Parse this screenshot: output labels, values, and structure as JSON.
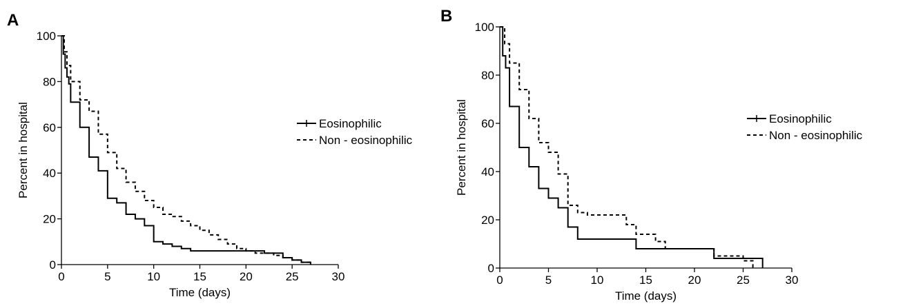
{
  "chart_data": [
    {
      "type": "line",
      "panel_label": "A",
      "xlabel": "Time (days)",
      "ylabel": "Percent in hospital",
      "xlim": [
        0,
        30
      ],
      "ylim": [
        0,
        100
      ],
      "xticks": [
        0,
        5,
        10,
        15,
        20,
        25,
        30
      ],
      "yticks": [
        0,
        20,
        40,
        60,
        80,
        100
      ],
      "xtick_labels": [
        "0",
        "5",
        "10",
        "15",
        "20",
        "25",
        "30"
      ],
      "ytick_labels": [
        "0",
        "20",
        "40",
        "60",
        "80",
        "100"
      ],
      "legend_position": "right",
      "step": true,
      "series": [
        {
          "name": "Eosinophilic",
          "style": "solid",
          "x": [
            0,
            0.2,
            0.4,
            0.6,
            0.8,
            1,
            2,
            3,
            4,
            5,
            6,
            7,
            8,
            9,
            10,
            11,
            12,
            13,
            14,
            22,
            24,
            25,
            26,
            27
          ],
          "y": [
            100,
            92,
            86,
            82,
            79,
            71,
            60,
            47,
            41,
            29,
            27,
            22,
            20,
            17,
            10,
            9,
            8,
            7,
            6,
            5,
            3,
            2,
            1,
            0
          ]
        },
        {
          "name": "Non - eosinophilic",
          "style": "dashed",
          "x": [
            0,
            0.3,
            0.6,
            1,
            2,
            3,
            4,
            5,
            6,
            7,
            8,
            9,
            10,
            11,
            12,
            13,
            14,
            15,
            16,
            17,
            18,
            19,
            20,
            21,
            22,
            23,
            24,
            25,
            26,
            27
          ],
          "y": [
            100,
            93,
            87,
            80,
            72,
            67,
            57,
            49,
            42,
            36,
            32,
            28,
            25,
            22,
            21,
            19,
            17,
            15,
            13,
            11,
            9,
            7,
            6,
            5,
            5,
            4,
            3,
            2,
            1,
            0
          ]
        }
      ]
    },
    {
      "type": "line",
      "panel_label": "B",
      "xlabel": "Time (days)",
      "ylabel": "Percent in hospital",
      "xlim": [
        0,
        30
      ],
      "ylim": [
        0,
        100
      ],
      "xticks": [
        0,
        5,
        10,
        15,
        20,
        25,
        30
      ],
      "yticks": [
        0,
        20,
        40,
        60,
        80,
        100
      ],
      "xtick_labels": [
        "0",
        "5",
        "10",
        "15",
        "20",
        "25",
        "30"
      ],
      "ytick_labels": [
        "0",
        "20",
        "40",
        "60",
        "80",
        "100"
      ],
      "legend_position": "right",
      "step": true,
      "series": [
        {
          "name": "Eosinophilic",
          "style": "solid",
          "x": [
            0,
            0.3,
            0.6,
            1,
            2,
            3,
            4,
            5,
            6,
            7,
            8,
            14,
            22,
            27
          ],
          "y": [
            100,
            88,
            83,
            67,
            50,
            42,
            33,
            29,
            25,
            17,
            12,
            8,
            4,
            0
          ]
        },
        {
          "name": "Non - eosinophilic",
          "style": "dashed",
          "x": [
            0,
            0.5,
            1,
            2,
            3,
            4,
            5,
            6,
            7,
            8,
            9,
            13,
            14,
            16,
            17,
            18,
            22,
            25,
            26
          ],
          "y": [
            100,
            93,
            85,
            74,
            62,
            52,
            48,
            39,
            26,
            23,
            22,
            18,
            14,
            11,
            8,
            8,
            5,
            3,
            0
          ]
        }
      ]
    }
  ]
}
